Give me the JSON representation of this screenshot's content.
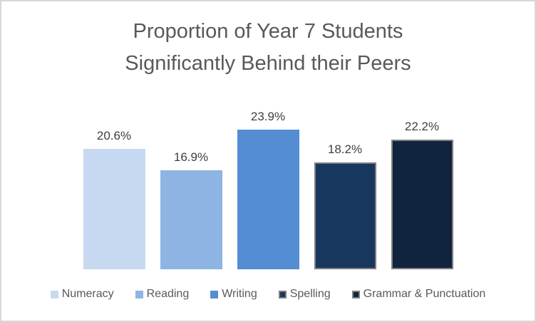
{
  "title": {
    "lines": [
      "Proportion of Year 7 Students",
      "Significantly Behind their Peers"
    ]
  },
  "chart_data": {
    "type": "bar",
    "title": "Proportion of Year 7 Students Significantly Behind their Peers",
    "categories": [
      "Numeracy",
      "Reading",
      "Writing",
      "Spelling",
      "Grammar & Punctuation"
    ],
    "values": [
      20.6,
      16.9,
      23.9,
      18.2,
      22.2
    ],
    "value_labels": [
      "20.6%",
      "16.9%",
      "23.9%",
      "18.2%",
      "22.2%"
    ],
    "bar_colors": [
      "#c6d9f1",
      "#8eb4e3",
      "#548dd4",
      "#17375e",
      "#10243e"
    ],
    "bar_border_colors": [
      null,
      null,
      null,
      "#7f7f7f",
      "#7f7f7f"
    ],
    "xlabel": "",
    "ylabel": "",
    "ylim": [
      0,
      30
    ],
    "grid": false,
    "axes_visible": false,
    "data_labels": true,
    "legend_position": "bottom",
    "title_color": "#595959",
    "data_label_color": "#404040",
    "legend_text_color": "#595959"
  }
}
